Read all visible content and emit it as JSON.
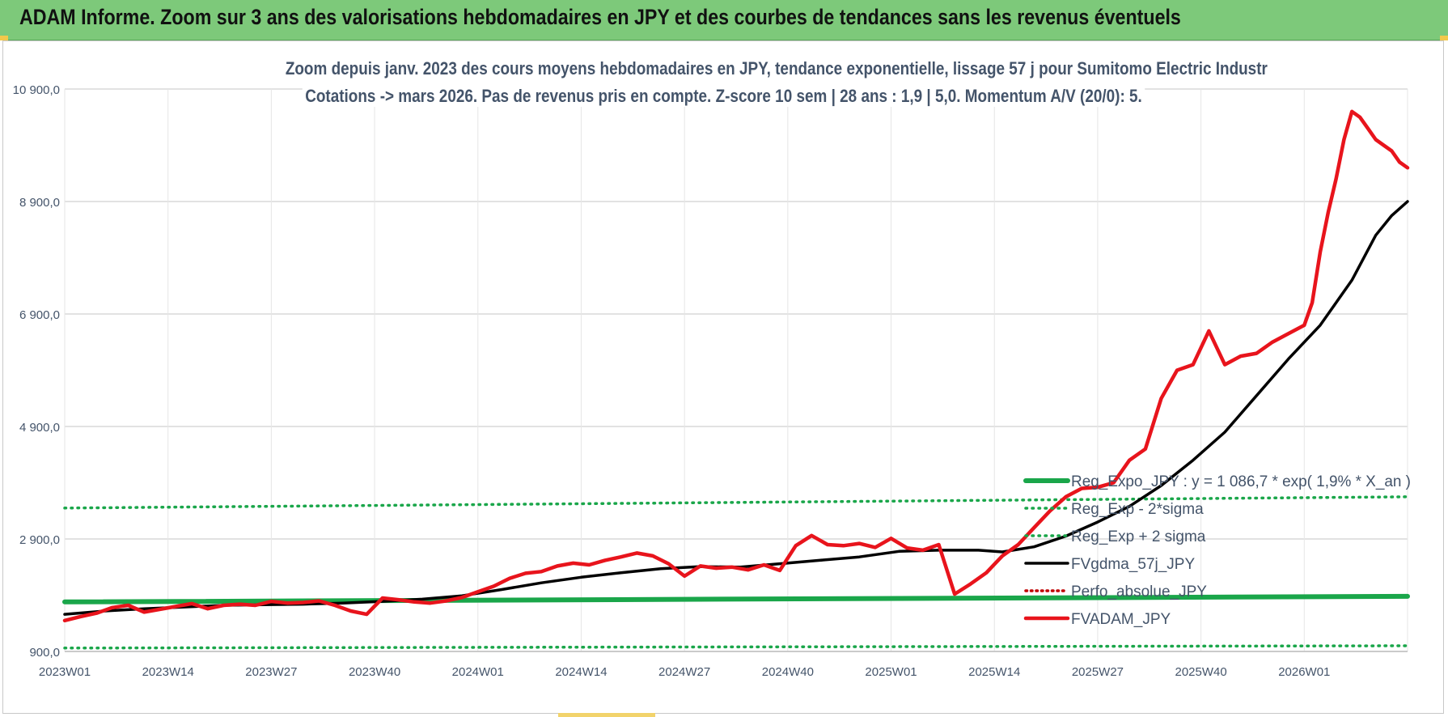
{
  "banner": {
    "title": "ADAM Informe. Zoom sur 3 ans des valorisations hebdomadaires en JPY et des courbes de tendances sans les revenus éventuels"
  },
  "chart_data": {
    "type": "line",
    "title_line1": "Zoom depuis janv. 2023 des cours moyens hebdomadaires en JPY, tendance exponentielle, lissage 57 j pour Sumitomo Electric Industr",
    "title_line2": "Cotations -> mars 2026. Pas de revenus pris en compte. Z-score 10 sem | 28 ans : 1,9 | 5,0. Momentum A/V (20/0): 5.",
    "ylim": [
      900,
      10900
    ],
    "y_ticks": [
      "900,0",
      "2 900,0",
      "4 900,0",
      "6 900,0",
      "8 900,0",
      "10 900,0"
    ],
    "y_tick_values": [
      900,
      2900,
      4900,
      6900,
      8900,
      10900
    ],
    "x_ticks": [
      "2023W01",
      "2023W14",
      "2023W27",
      "2023W40",
      "2024W01",
      "2024W14",
      "2024W27",
      "2024W40",
      "2025W01",
      "2025W14",
      "2025W27",
      "2025W40",
      "2026W01"
    ],
    "x_tick_weeks": [
      0,
      13,
      26,
      39,
      52,
      65,
      78,
      91,
      104,
      117,
      130,
      143,
      156
    ],
    "x_max_week": 169,
    "grid": true,
    "legend_position": "right",
    "colors": {
      "reg_expo": "#1aa64a",
      "sigma": "#1aa64a",
      "fvgdma": "#000000",
      "perfo": "#c00000",
      "fvadam": "#e8141c",
      "grid": "#d9d9d9",
      "axis_text": "#44546a"
    },
    "series": [
      {
        "name": "Reg_Expo_JPY : y = 1 086,7 * exp( 1,9% *  X_an )",
        "style": "solid-thick",
        "x": [
          0,
          169
        ],
        "y": [
          1780,
          1880
        ]
      },
      {
        "name": "Reg_Exp - 2*sigma",
        "style": "dotted",
        "x": [
          0,
          169
        ],
        "y": [
          960,
          1000
        ]
      },
      {
        "name": "Reg_Exp + 2 sigma",
        "style": "dotted",
        "x": [
          0,
          169
        ],
        "y": [
          3450,
          3650
        ]
      },
      {
        "name": "FVgdma_57j_JPY",
        "style": "solid",
        "x": [
          0,
          5,
          10,
          15,
          20,
          25,
          30,
          35,
          40,
          45,
          50,
          55,
          60,
          65,
          70,
          75,
          80,
          85,
          90,
          95,
          100,
          105,
          110,
          115,
          118,
          122,
          126,
          130,
          134,
          138,
          142,
          146,
          150,
          154,
          158,
          162,
          165,
          167,
          169
        ],
        "y": [
          1560,
          1620,
          1660,
          1690,
          1720,
          1730,
          1740,
          1760,
          1790,
          1830,
          1890,
          2000,
          2120,
          2220,
          2300,
          2370,
          2410,
          2400,
          2460,
          2520,
          2580,
          2680,
          2700,
          2700,
          2670,
          2760,
          2950,
          3200,
          3480,
          3850,
          4300,
          4800,
          5450,
          6100,
          6700,
          7500,
          8300,
          8650,
          8900
        ]
      },
      {
        "name": "Perfo_absolue_JPY",
        "style": "dotted",
        "x": [],
        "y": []
      },
      {
        "name": "FVADAM_JPY",
        "style": "solid-thick",
        "x": [
          0,
          2,
          4,
          6,
          8,
          10,
          12,
          14,
          16,
          18,
          20,
          22,
          24,
          26,
          28,
          30,
          32,
          34,
          36,
          38,
          40,
          42,
          44,
          46,
          48,
          50,
          52,
          54,
          56,
          58,
          60,
          62,
          64,
          66,
          68,
          70,
          72,
          74,
          76,
          78,
          80,
          82,
          84,
          86,
          88,
          90,
          92,
          94,
          96,
          98,
          100,
          102,
          104,
          106,
          108,
          110,
          112,
          114,
          116,
          117,
          118,
          120,
          122,
          124,
          126,
          128,
          130,
          132,
          134,
          136,
          138,
          140,
          142,
          144,
          146,
          148,
          150,
          152,
          154,
          156,
          157,
          158,
          159,
          160,
          161,
          162,
          163,
          164,
          165,
          166,
          167,
          168,
          169
        ],
        "y": [
          1450,
          1520,
          1580,
          1680,
          1720,
          1600,
          1650,
          1700,
          1750,
          1660,
          1720,
          1740,
          1720,
          1790,
          1760,
          1770,
          1800,
          1720,
          1620,
          1560,
          1850,
          1820,
          1780,
          1760,
          1800,
          1860,
          1960,
          2060,
          2200,
          2290,
          2320,
          2420,
          2470,
          2440,
          2520,
          2580,
          2650,
          2600,
          2460,
          2240,
          2420,
          2380,
          2400,
          2350,
          2440,
          2340,
          2780,
          2960,
          2800,
          2780,
          2820,
          2750,
          2910,
          2740,
          2700,
          2800,
          1920,
          2100,
          2300,
          2450,
          2600,
          2800,
          3100,
          3400,
          3650,
          3800,
          3820,
          3900,
          4300,
          4500,
          5400,
          5900,
          6000,
          6600,
          6000,
          6150,
          6200,
          6400,
          6550,
          6700,
          7100,
          8000,
          8700,
          9300,
          10000,
          10500,
          10400,
          10200,
          10000,
          9900,
          9800,
          9600,
          9500
        ]
      }
    ]
  }
}
